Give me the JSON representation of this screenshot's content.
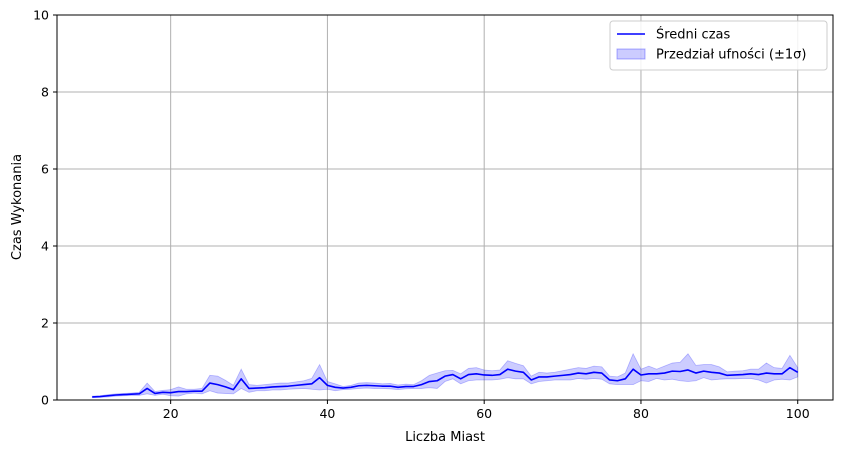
{
  "chart_data": {
    "type": "line",
    "xlabel": "Liczba Miast",
    "ylabel": "Czas Wykonania",
    "xlim": [
      5.5,
      104.5
    ],
    "ylim": [
      0,
      10
    ],
    "x_ticks": [
      20,
      40,
      60,
      80,
      100
    ],
    "y_ticks": [
      0,
      2,
      4,
      6,
      8,
      10
    ],
    "grid": true,
    "legend_position": "top-right",
    "colors": {
      "line": "#0000ff",
      "band": "#0000ff",
      "grid": "#b0b0b0",
      "axis": "#000000"
    },
    "series": [
      {
        "name": "Średni czas",
        "kind": "line",
        "x": [
          10,
          11,
          12,
          13,
          14,
          15,
          16,
          17,
          18,
          19,
          20,
          21,
          22,
          23,
          24,
          25,
          26,
          27,
          28,
          29,
          30,
          31,
          32,
          33,
          34,
          35,
          36,
          37,
          38,
          39,
          40,
          41,
          42,
          43,
          44,
          45,
          46,
          47,
          48,
          49,
          50,
          51,
          52,
          53,
          54,
          55,
          56,
          57,
          58,
          59,
          60,
          61,
          62,
          63,
          64,
          65,
          66,
          67,
          68,
          69,
          70,
          71,
          72,
          73,
          74,
          75,
          76,
          77,
          78,
          79,
          80,
          81,
          82,
          83,
          84,
          85,
          86,
          87,
          88,
          89,
          90,
          91,
          92,
          93,
          94,
          95,
          96,
          97,
          98,
          99,
          100
        ],
        "y": [
          0.08,
          0.09,
          0.11,
          0.13,
          0.14,
          0.15,
          0.16,
          0.3,
          0.17,
          0.2,
          0.19,
          0.22,
          0.22,
          0.23,
          0.23,
          0.44,
          0.4,
          0.34,
          0.27,
          0.55,
          0.3,
          0.31,
          0.32,
          0.34,
          0.35,
          0.36,
          0.38,
          0.4,
          0.42,
          0.58,
          0.38,
          0.33,
          0.31,
          0.33,
          0.37,
          0.38,
          0.37,
          0.36,
          0.36,
          0.33,
          0.35,
          0.35,
          0.4,
          0.48,
          0.5,
          0.62,
          0.66,
          0.55,
          0.66,
          0.68,
          0.65,
          0.64,
          0.66,
          0.8,
          0.75,
          0.72,
          0.52,
          0.6,
          0.6,
          0.62,
          0.64,
          0.66,
          0.7,
          0.68,
          0.72,
          0.7,
          0.52,
          0.5,
          0.55,
          0.8,
          0.65,
          0.68,
          0.68,
          0.7,
          0.75,
          0.74,
          0.78,
          0.7,
          0.75,
          0.72,
          0.7,
          0.64,
          0.65,
          0.66,
          0.68,
          0.66,
          0.7,
          0.68,
          0.68,
          0.84,
          0.72
        ]
      },
      {
        "name": "Przedział ufności (±1σ)",
        "kind": "band",
        "x": [
          10,
          11,
          12,
          13,
          14,
          15,
          16,
          17,
          18,
          19,
          20,
          21,
          22,
          23,
          24,
          25,
          26,
          27,
          28,
          29,
          30,
          31,
          32,
          33,
          34,
          35,
          36,
          37,
          38,
          39,
          40,
          41,
          42,
          43,
          44,
          45,
          46,
          47,
          48,
          49,
          50,
          51,
          52,
          53,
          54,
          55,
          56,
          57,
          58,
          59,
          60,
          61,
          62,
          63,
          64,
          65,
          66,
          67,
          68,
          69,
          70,
          71,
          72,
          73,
          74,
          75,
          76,
          77,
          78,
          79,
          80,
          81,
          82,
          83,
          84,
          85,
          86,
          87,
          88,
          89,
          90,
          91,
          92,
          93,
          94,
          95,
          96,
          97,
          98,
          99,
          100
        ],
        "lower": [
          0.06,
          0.07,
          0.08,
          0.1,
          0.11,
          0.12,
          0.12,
          0.16,
          0.12,
          0.15,
          0.11,
          0.1,
          0.16,
          0.18,
          0.16,
          0.24,
          0.18,
          0.17,
          0.16,
          0.3,
          0.2,
          0.24,
          0.24,
          0.26,
          0.26,
          0.28,
          0.29,
          0.3,
          0.28,
          0.26,
          0.28,
          0.24,
          0.27,
          0.28,
          0.3,
          0.31,
          0.3,
          0.3,
          0.29,
          0.27,
          0.29,
          0.3,
          0.3,
          0.32,
          0.3,
          0.48,
          0.55,
          0.42,
          0.5,
          0.52,
          0.52,
          0.52,
          0.54,
          0.58,
          0.55,
          0.55,
          0.42,
          0.48,
          0.5,
          0.52,
          0.52,
          0.52,
          0.56,
          0.54,
          0.56,
          0.54,
          0.42,
          0.4,
          0.4,
          0.4,
          0.5,
          0.48,
          0.56,
          0.52,
          0.54,
          0.5,
          0.48,
          0.5,
          0.58,
          0.52,
          0.54,
          0.55,
          0.55,
          0.56,
          0.56,
          0.52,
          0.44,
          0.52,
          0.54,
          0.52,
          0.6
        ],
        "upper": [
          0.1,
          0.11,
          0.14,
          0.16,
          0.17,
          0.18,
          0.2,
          0.44,
          0.22,
          0.25,
          0.27,
          0.34,
          0.28,
          0.28,
          0.3,
          0.64,
          0.62,
          0.51,
          0.38,
          0.8,
          0.4,
          0.38,
          0.4,
          0.42,
          0.44,
          0.44,
          0.47,
          0.5,
          0.56,
          0.92,
          0.48,
          0.42,
          0.35,
          0.38,
          0.44,
          0.45,
          0.44,
          0.42,
          0.43,
          0.39,
          0.41,
          0.4,
          0.5,
          0.64,
          0.7,
          0.76,
          0.77,
          0.68,
          0.82,
          0.84,
          0.78,
          0.76,
          0.78,
          1.02,
          0.95,
          0.89,
          0.62,
          0.72,
          0.7,
          0.72,
          0.76,
          0.8,
          0.84,
          0.82,
          0.88,
          0.86,
          0.62,
          0.6,
          0.7,
          1.2,
          0.8,
          0.88,
          0.8,
          0.88,
          0.96,
          0.98,
          1.2,
          0.9,
          0.92,
          0.92,
          0.86,
          0.73,
          0.75,
          0.76,
          0.8,
          0.8,
          0.96,
          0.84,
          0.82,
          1.16,
          0.84
        ]
      }
    ]
  }
}
